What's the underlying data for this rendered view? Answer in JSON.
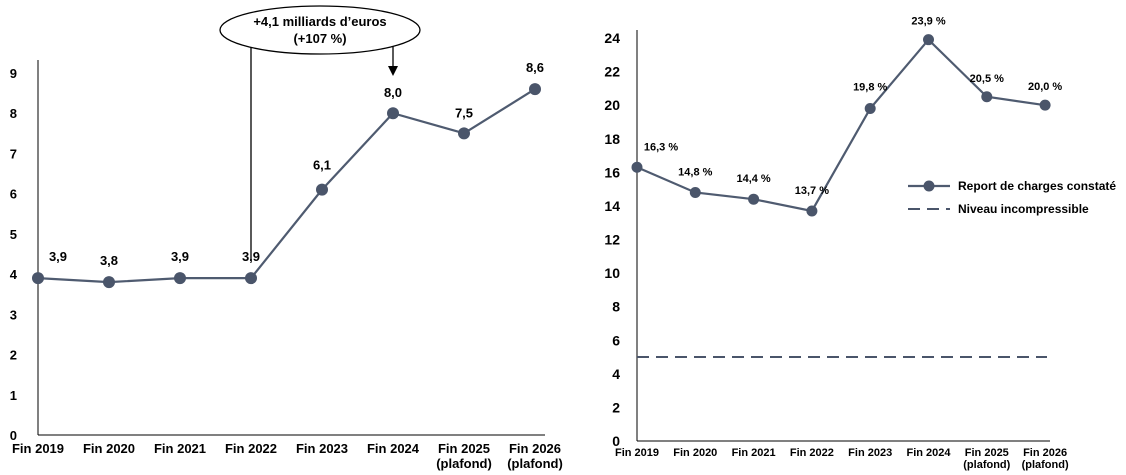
{
  "chart_data": [
    {
      "type": "line",
      "categories": [
        "Fin 2019",
        "Fin 2020",
        "Fin 2021",
        "Fin 2022",
        "Fin 2023",
        "Fin 2024",
        "Fin 2025 (plafond)",
        "Fin 2026 (plafond)"
      ],
      "series": [
        {
          "values": [
            3.9,
            3.8,
            3.9,
            3.9,
            6.1,
            8.0,
            7.5,
            8.6
          ],
          "labels": [
            "3,9",
            "3,8",
            "3,9",
            "3,9",
            "6,1",
            "8,0",
            "7,5",
            "8,6"
          ]
        }
      ],
      "ylim": [
        0,
        9
      ],
      "yticks": [
        "0",
        "1",
        "2",
        "3",
        "4",
        "5",
        "6",
        "7",
        "8",
        "9"
      ],
      "annotation": {
        "line1": "+4,1 milliards d’euros",
        "line2": "(+107 %)",
        "from": "Fin 2022",
        "to": "Fin 2024"
      },
      "grid": false,
      "colors": {
        "line": "#4f5b70",
        "marker": "#4a556a",
        "axis": "#000000"
      }
    },
    {
      "type": "line",
      "categories": [
        "Fin 2019",
        "Fin 2020",
        "Fin 2021",
        "Fin 2022",
        "Fin 2023",
        "Fin 2024",
        "Fin 2025 (plafond)",
        "Fin 2026 (plafond)"
      ],
      "series": [
        {
          "name": "Report de charges constaté",
          "values": [
            16.3,
            14.8,
            14.4,
            13.7,
            19.8,
            23.9,
            20.5,
            20.0
          ],
          "labels": [
            "16,3 %",
            "14,8 %",
            "14,4 %",
            "13,7 %",
            "19,8 %",
            "23,9 %",
            "20,5 %",
            "20,0 %"
          ]
        },
        {
          "name": "Niveau incompressible",
          "values": [
            5,
            5,
            5,
            5,
            5,
            5,
            5,
            5
          ],
          "style": "dashed"
        }
      ],
      "ylim": [
        0,
        24
      ],
      "yticks": [
        "0",
        "2",
        "4",
        "6",
        "8",
        "10",
        "12",
        "14",
        "16",
        "18",
        "20",
        "22",
        "24"
      ],
      "legend_position": "right",
      "grid": false,
      "colors": {
        "line": "#4f5b70",
        "marker": "#4a556a",
        "dashed": "#4a556a",
        "axis": "#000000"
      }
    }
  ]
}
